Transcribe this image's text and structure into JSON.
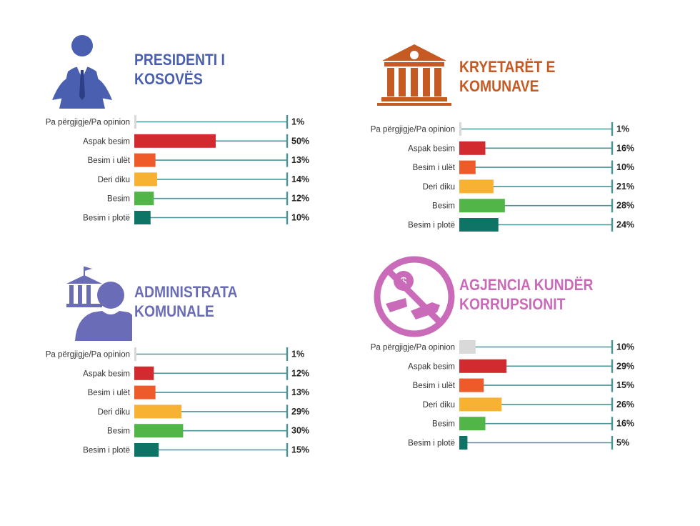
{
  "chart_data": [
    {
      "type": "bar",
      "title": [
        "PRESIDENTI I",
        "KOSOVËS"
      ],
      "icon": "president-icon",
      "title_color": "#4a5fb0",
      "categories": [
        "Pa përgjigje/Pa opinion",
        "Aspak besim",
        "Besim i ulët",
        "Deri diku",
        "Besim",
        "Besim i plotë"
      ],
      "values": [
        1,
        50,
        13,
        14,
        12,
        10
      ],
      "labels": [
        "1%",
        "50%",
        "13%",
        "14%",
        "12%",
        "10%"
      ],
      "xlim": [
        0,
        100
      ]
    },
    {
      "type": "bar",
      "title": [
        "KRYETARËT E",
        "KOMUNAVE"
      ],
      "icon": "municipal-building-icon",
      "title_color": "#c55a23",
      "categories": [
        "Pa përgjigje/Pa opinion",
        "Aspak besim",
        "Besim i ulët",
        "Deri diku",
        "Besim",
        "Besim i plotë"
      ],
      "values": [
        1,
        16,
        10,
        21,
        28,
        24
      ],
      "labels": [
        "1%",
        "16%",
        "10%",
        "21%",
        "28%",
        "24%"
      ],
      "xlim": [
        0,
        100
      ]
    },
    {
      "type": "bar",
      "title": [
        "ADMINISTRATA",
        "KOMUNALE"
      ],
      "icon": "administration-icon",
      "title_color": "#6a6cb8",
      "categories": [
        "Pa përgjigje/Pa opinion",
        "Aspak besim",
        "Besim i ulët",
        "Deri diku",
        "Besim",
        "Besim i plotë"
      ],
      "values": [
        1,
        12,
        13,
        29,
        30,
        15
      ],
      "labels": [
        "1%",
        "12%",
        "13%",
        "29%",
        "30%",
        "15%"
      ],
      "xlim": [
        0,
        100
      ]
    },
    {
      "type": "bar",
      "title": [
        "AGJENCIA KUNDËR",
        "KORRUPSIONIT"
      ],
      "icon": "no-bribery-icon",
      "title_color": "#c96bb8",
      "categories": [
        "Pa përgjigje/Pa opinion",
        "Aspak besim",
        "Besim i ulët",
        "Deri diku",
        "Besim",
        "Besim i plotë"
      ],
      "values": [
        10,
        29,
        15,
        26,
        16,
        5
      ],
      "labels": [
        "10%",
        "29%",
        "15%",
        "26%",
        "16%",
        "5%"
      ],
      "xlim": [
        0,
        100
      ]
    }
  ],
  "colors": {
    "bars": [
      "#d9d9d9",
      "#d12a2f",
      "#ef5a2b",
      "#f7b133",
      "#52b548",
      "#0e7466"
    ],
    "axis_line": "#4a9396",
    "label_text": "#222222"
  }
}
